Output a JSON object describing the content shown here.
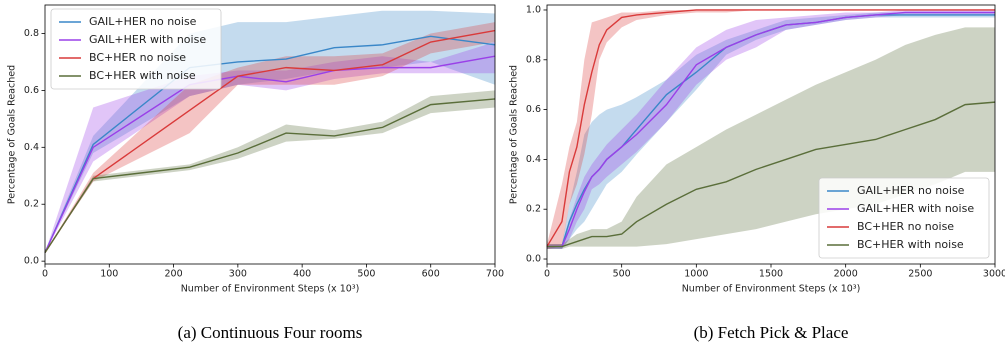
{
  "chart_data": [
    {
      "type": "line",
      "caption": "(a) Continuous Four rooms",
      "xlabel": "Number of Environment Steps (x 10³)",
      "ylabel": "Percentage of Goals Reached",
      "xlim": [
        0,
        700
      ],
      "ylim": [
        -0.01,
        0.9
      ],
      "xticks": [
        0,
        100,
        200,
        300,
        400,
        500,
        600,
        700
      ],
      "yticks": [
        {
          "value": 0,
          "label": "0.0"
        },
        0.2,
        0.4,
        0.6,
        0.8
      ],
      "legend": "upper left",
      "x": [
        0,
        75,
        225,
        300,
        375,
        450,
        525,
        600,
        700
      ],
      "series": [
        {
          "name": "GAIL+HER no noise",
          "color": "#3a87c8",
          "values": [
            0.03,
            0.41,
            0.68,
            0.7,
            0.71,
            0.75,
            0.76,
            0.79,
            0.76
          ],
          "lower": [
            0.03,
            0.38,
            0.58,
            0.62,
            0.64,
            0.67,
            0.68,
            0.7,
            0.62
          ],
          "upper": [
            0.03,
            0.44,
            0.8,
            0.84,
            0.84,
            0.86,
            0.88,
            0.88,
            0.87
          ]
        },
        {
          "name": "GAIL+HER with noise",
          "color": "#9a40e8",
          "values": [
            0.03,
            0.4,
            0.62,
            0.65,
            0.63,
            0.67,
            0.68,
            0.68,
            0.72
          ],
          "lower": [
            0.03,
            0.35,
            0.58,
            0.62,
            0.6,
            0.64,
            0.66,
            0.66,
            0.66
          ],
          "upper": [
            0.03,
            0.54,
            0.65,
            0.67,
            0.67,
            0.7,
            0.72,
            0.7,
            0.77
          ]
        },
        {
          "name": "BC+HER no noise",
          "color": "#d93a3a",
          "values": [
            0.03,
            0.29,
            0.53,
            0.65,
            0.68,
            0.67,
            0.69,
            0.77,
            0.81
          ],
          "lower": [
            0.03,
            0.28,
            0.45,
            0.62,
            0.62,
            0.62,
            0.65,
            0.73,
            0.77
          ],
          "upper": [
            0.03,
            0.31,
            0.62,
            0.68,
            0.72,
            0.72,
            0.73,
            0.8,
            0.84
          ]
        },
        {
          "name": "BC+HER with noise",
          "color": "#5a6e3a",
          "values": [
            0.03,
            0.29,
            0.33,
            0.38,
            0.45,
            0.44,
            0.47,
            0.55,
            0.57
          ],
          "lower": [
            0.03,
            0.28,
            0.32,
            0.36,
            0.42,
            0.43,
            0.45,
            0.52,
            0.54
          ],
          "upper": [
            0.03,
            0.3,
            0.34,
            0.4,
            0.48,
            0.46,
            0.49,
            0.58,
            0.6
          ]
        }
      ]
    },
    {
      "type": "line",
      "caption": "(b) Fetch Pick & Place",
      "xlabel": "Number of Environment Steps (x 10³)",
      "ylabel": "Percentage of Goals Reached",
      "xlim": [
        0,
        3000
      ],
      "ylim": [
        -0.02,
        1.02
      ],
      "xticks": [
        0,
        500,
        1000,
        1500,
        2000,
        2500,
        3000
      ],
      "yticks": [
        {
          "value": 0,
          "label": "0.0"
        },
        0.2,
        0.4,
        0.6,
        0.8,
        {
          "value": 1,
          "label": "1.0"
        }
      ],
      "legend": "lower right",
      "x": [
        0,
        100,
        150,
        200,
        250,
        300,
        350,
        400,
        500,
        600,
        800,
        1000,
        1200,
        1400,
        1600,
        1800,
        2000,
        2200,
        2400,
        2600,
        2800,
        3000
      ],
      "series": [
        {
          "name": "GAIL+HER no noise",
          "color": "#3a87c8",
          "values": [
            0.05,
            0.05,
            0.15,
            0.22,
            0.28,
            0.33,
            0.36,
            0.4,
            0.45,
            0.52,
            0.66,
            0.75,
            0.85,
            0.9,
            0.94,
            0.95,
            0.97,
            0.98,
            0.98,
            0.98,
            0.98,
            0.98
          ],
          "lower": [
            0.04,
            0.04,
            0.08,
            0.12,
            0.15,
            0.2,
            0.25,
            0.3,
            0.35,
            0.42,
            0.55,
            0.68,
            0.82,
            0.88,
            0.92,
            0.94,
            0.96,
            0.97,
            0.97,
            0.97,
            0.97,
            0.97
          ],
          "upper": [
            0.06,
            0.06,
            0.22,
            0.35,
            0.5,
            0.55,
            0.58,
            0.6,
            0.62,
            0.65,
            0.72,
            0.82,
            0.88,
            0.92,
            0.96,
            0.97,
            0.98,
            0.99,
            0.99,
            0.99,
            0.99,
            0.99
          ]
        },
        {
          "name": "GAIL+HER with noise",
          "color": "#9a40e8",
          "values": [
            0.05,
            0.05,
            0.12,
            0.2,
            0.27,
            0.33,
            0.36,
            0.4,
            0.45,
            0.5,
            0.62,
            0.78,
            0.85,
            0.9,
            0.94,
            0.95,
            0.97,
            0.98,
            0.99,
            0.99,
            0.99,
            0.99
          ],
          "lower": [
            0.04,
            0.04,
            0.08,
            0.15,
            0.2,
            0.28,
            0.3,
            0.33,
            0.38,
            0.43,
            0.55,
            0.7,
            0.8,
            0.85,
            0.92,
            0.94,
            0.96,
            0.97,
            0.98,
            0.98,
            0.98,
            0.98
          ],
          "upper": [
            0.06,
            0.06,
            0.16,
            0.25,
            0.33,
            0.38,
            0.42,
            0.46,
            0.52,
            0.58,
            0.72,
            0.85,
            0.92,
            0.96,
            0.97,
            0.98,
            0.99,
            0.99,
            1.0,
            1.0,
            1.0,
            1.0
          ]
        },
        {
          "name": "BC+HER no noise",
          "color": "#d93a3a",
          "values": [
            0.05,
            0.15,
            0.35,
            0.45,
            0.62,
            0.75,
            0.86,
            0.92,
            0.97,
            0.98,
            0.99,
            1.0,
            1.0,
            1.0,
            1.0,
            1.0,
            1.0,
            1.0,
            1.0,
            1.0,
            1.0,
            1.0
          ],
          "lower": [
            0.04,
            0.05,
            0.22,
            0.3,
            0.42,
            0.58,
            0.8,
            0.87,
            0.93,
            0.96,
            0.98,
            0.99,
            0.99,
            1.0,
            1.0,
            1.0,
            1.0,
            1.0,
            1.0,
            1.0,
            1.0,
            1.0
          ],
          "upper": [
            0.06,
            0.3,
            0.45,
            0.55,
            0.8,
            0.95,
            0.96,
            0.97,
            0.99,
            0.99,
            1.0,
            1.0,
            1.0,
            1.0,
            1.0,
            1.0,
            1.0,
            1.0,
            1.0,
            1.0,
            1.0,
            1.0
          ]
        },
        {
          "name": "BC+HER with noise",
          "color": "#5a6e3a",
          "values": [
            0.05,
            0.05,
            0.06,
            0.07,
            0.08,
            0.09,
            0.09,
            0.09,
            0.1,
            0.15,
            0.22,
            0.28,
            0.31,
            0.36,
            0.4,
            0.44,
            0.46,
            0.48,
            0.52,
            0.56,
            0.62,
            0.63
          ],
          "lower": [
            0.04,
            0.04,
            0.05,
            0.05,
            0.05,
            0.05,
            0.05,
            0.05,
            0.05,
            0.05,
            0.06,
            0.08,
            0.1,
            0.12,
            0.15,
            0.18,
            0.2,
            0.22,
            0.26,
            0.3,
            0.35,
            0.35
          ],
          "upper": [
            0.06,
            0.06,
            0.08,
            0.1,
            0.11,
            0.12,
            0.12,
            0.12,
            0.15,
            0.25,
            0.38,
            0.45,
            0.52,
            0.58,
            0.64,
            0.7,
            0.75,
            0.8,
            0.86,
            0.9,
            0.93,
            0.93
          ]
        }
      ]
    }
  ]
}
